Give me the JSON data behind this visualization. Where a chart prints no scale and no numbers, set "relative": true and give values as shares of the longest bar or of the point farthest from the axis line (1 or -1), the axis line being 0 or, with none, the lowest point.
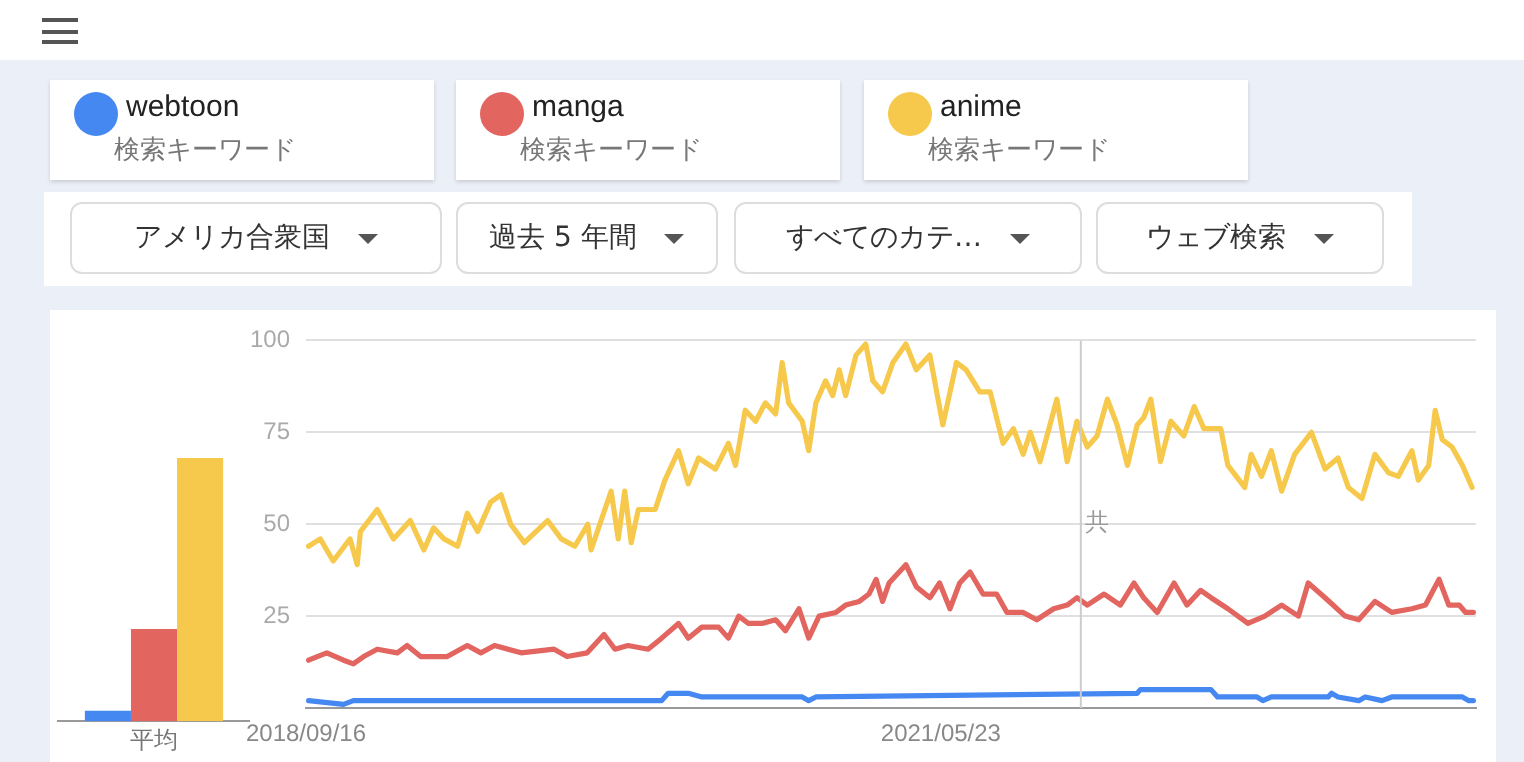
{
  "chart_data": [
    {
      "type": "bar",
      "relative": true,
      "categories": [
        "平均"
      ],
      "series": [
        {
          "color": "#4688f1",
          "values": [
            0.04
          ]
        },
        {
          "color": "#e2655f",
          "values": [
            0.35
          ]
        },
        {
          "color": "#f6c94c",
          "values": [
            1
          ]
        }
      ]
    },
    {
      "type": "line",
      "legend": "top left",
      "grid": "y",
      "line_style": "solid",
      "marker": "none",
      "xlim": [
        "2018-09-16",
        "2023-08-27"
      ],
      "xticks": [
        {
          "value": "2018-09-16",
          "label": "2018/09/16"
        },
        {
          "value": "2021-05-23",
          "label": "2021/05/23"
        }
      ],
      "ylim": [
        0,
        100
      ],
      "yticks": [
        25,
        50,
        75,
        100
      ],
      "ref_lines": [
        {
          "axis": "x",
          "value": "2021-12-25",
          "label": "共",
          "color": "#cccccc"
        }
      ],
      "annotations": [
        "検索キーワード",
        "検索キーワード",
        "検索キーワード",
        "アメリカ合衆国",
        "過去 5 年間",
        "すべてのカテ…",
        "ウェブ検索"
      ],
      "series": [
        {
          "name": "webtoon",
          "color": "#4688f1",
          "x": [
            "2018-09-20",
            "2018-11-13",
            "2018-11-28",
            "2020-03-18",
            "2020-03-28",
            "2020-04-28",
            "2020-05-19",
            "2020-10-21",
            "2020-10-31",
            "2020-11-11",
            "2022-03-22",
            "2022-03-27",
            "2022-07-14",
            "2022-07-24",
            "2022-09-23",
            "2022-10-02",
            "2022-10-15",
            "2023-01-11",
            "2023-01-16",
            "2023-01-26",
            "2023-02-27",
            "2023-03-09",
            "2023-04-04",
            "2023-04-19",
            "2023-08-06",
            "2023-08-16",
            "2023-08-23"
          ],
          "values": [
            2,
            1,
            2,
            2,
            4,
            4,
            3,
            3,
            2,
            3,
            4,
            5,
            5,
            3,
            3,
            2,
            3,
            3,
            4,
            3,
            2,
            3,
            2,
            3,
            3,
            2,
            2
          ]
        },
        {
          "name": "manga",
          "color": "#e2655f",
          "x": [
            "2018-09-20",
            "2018-10-18",
            "2018-11-13",
            "2018-11-28",
            "2018-12-14",
            "2019-01-04",
            "2019-02-04",
            "2019-02-19",
            "2019-03-12",
            "2019-04-22",
            "2019-05-23",
            "2019-06-13",
            "2019-07-04",
            "2019-08-14",
            "2019-10-04",
            "2019-10-24",
            "2019-11-24",
            "2019-12-20",
            "2020-01-06",
            "2020-01-26",
            "2020-02-26",
            "2020-03-18",
            "2020-04-13",
            "2020-04-28",
            "2020-05-19",
            "2020-06-14",
            "2020-06-29",
            "2020-07-15",
            "2020-07-30",
            "2020-08-20",
            "2020-09-10",
            "2020-09-25",
            "2020-10-16",
            "2020-10-31",
            "2020-11-16",
            "2020-12-12",
            "2020-12-27",
            "2021-01-17",
            "2021-02-01",
            "2021-02-12",
            "2021-02-22",
            "2021-03-04",
            "2021-03-30",
            "2021-04-15",
            "2021-05-06",
            "2021-05-21",
            "2021-06-06",
            "2021-06-21",
            "2021-07-07",
            "2021-07-27",
            "2021-08-17",
            "2021-09-02",
            "2021-09-27",
            "2021-10-18",
            "2021-11-13",
            "2021-12-04",
            "2021-12-19",
            "2022-01-04",
            "2022-01-30",
            "2022-02-24",
            "2022-03-17",
            "2022-04-01",
            "2022-04-22",
            "2022-05-18",
            "2022-06-07",
            "2022-06-28",
            "2022-07-14",
            "2022-08-09",
            "2022-09-09",
            "2022-10-05",
            "2022-10-31",
            "2022-11-26",
            "2022-12-11",
            "2023-01-06",
            "2023-02-06",
            "2023-02-27",
            "2023-03-24",
            "2023-04-19",
            "2023-05-20",
            "2023-06-10",
            "2023-07-01",
            "2023-07-16",
            "2023-08-01",
            "2023-08-11",
            "2023-08-23"
          ],
          "values": [
            13,
            15,
            13,
            12,
            14,
            16,
            15,
            17,
            14,
            14,
            17,
            15,
            17,
            15,
            16,
            14,
            15,
            20,
            16,
            17,
            16,
            19,
            23,
            19,
            22,
            22,
            19,
            25,
            23,
            23,
            24,
            21,
            27,
            19,
            25,
            26,
            28,
            29,
            31,
            35,
            29,
            34,
            39,
            33,
            30,
            34,
            27,
            34,
            37,
            31,
            31,
            26,
            26,
            24,
            27,
            28,
            30,
            28,
            31,
            28,
            34,
            30,
            26,
            34,
            28,
            32,
            30,
            27,
            23,
            25,
            28,
            25,
            34,
            30,
            25,
            24,
            29,
            26,
            27,
            28,
            35,
            28,
            28,
            26,
            26
          ]
        },
        {
          "name": "anime",
          "color": "#f6c94c",
          "x": [
            "2018-09-20",
            "2018-10-08",
            "2018-10-28",
            "2018-11-23",
            "2018-12-04",
            "2018-12-09",
            "2019-01-04",
            "2019-01-29",
            "2019-02-24",
            "2019-03-17",
            "2019-04-01",
            "2019-04-17",
            "2019-05-08",
            "2019-05-23",
            "2019-06-08",
            "2019-06-28",
            "2019-07-14",
            "2019-07-29",
            "2019-08-19",
            "2019-09-24",
            "2019-10-15",
            "2019-11-05",
            "2019-11-25",
            "2019-11-30",
            "2019-12-31",
            "2020-01-11",
            "2020-01-21",
            "2020-01-31",
            "2020-02-11",
            "2020-03-08",
            "2020-03-23",
            "2020-04-13",
            "2020-04-28",
            "2020-05-14",
            "2020-06-09",
            "2020-06-29",
            "2020-07-10",
            "2020-07-25",
            "2020-08-10",
            "2020-08-25",
            "2020-09-10",
            "2020-09-20",
            "2020-09-30",
            "2020-10-21",
            "2020-10-31",
            "2020-11-11",
            "2020-11-26",
            "2020-12-07",
            "2020-12-17",
            "2020-12-27",
            "2021-01-12",
            "2021-01-27",
            "2021-02-07",
            "2021-02-22",
            "2021-03-10",
            "2021-03-30",
            "2021-04-15",
            "2021-05-06",
            "2021-05-26",
            "2021-06-16",
            "2021-07-01",
            "2021-07-22",
            "2021-08-07",
            "2021-08-27",
            "2021-09-12",
            "2021-09-27",
            "2021-10-08",
            "2021-10-23",
            "2021-11-18",
            "2021-12-04",
            "2021-12-19",
            "2022-01-04",
            "2022-01-19",
            "2022-02-04",
            "2022-02-19",
            "2022-03-07",
            "2022-03-22",
            "2022-04-01",
            "2022-04-12",
            "2022-04-27",
            "2022-05-13",
            "2022-06-02",
            "2022-06-18",
            "2022-07-03",
            "2022-07-29",
            "2022-08-09",
            "2022-09-04",
            "2022-09-14",
            "2022-09-30",
            "2022-10-15",
            "2022-10-31",
            "2022-11-20",
            "2022-12-16",
            "2023-01-06",
            "2023-01-26",
            "2023-02-11",
            "2023-03-04",
            "2023-03-24",
            "2023-04-14",
            "2023-04-29",
            "2023-05-20",
            "2023-05-30",
            "2023-06-15",
            "2023-06-25",
            "2023-07-06",
            "2023-07-21",
            "2023-08-06",
            "2023-08-21"
          ],
          "values": [
            44,
            46,
            40,
            46,
            39,
            48,
            54,
            46,
            51,
            43,
            49,
            46,
            44,
            53,
            48,
            56,
            58,
            50,
            45,
            51,
            46,
            44,
            50,
            43,
            59,
            46,
            59,
            45,
            54,
            54,
            62,
            70,
            61,
            68,
            65,
            72,
            66,
            81,
            78,
            83,
            80,
            94,
            83,
            78,
            70,
            83,
            89,
            85,
            92,
            85,
            96,
            99,
            89,
            86,
            94,
            99,
            92,
            96,
            77,
            94,
            92,
            86,
            86,
            72,
            76,
            69,
            75,
            67,
            84,
            67,
            78,
            71,
            74,
            84,
            77,
            66,
            77,
            79,
            84,
            67,
            78,
            74,
            82,
            76,
            76,
            66,
            60,
            69,
            63,
            70,
            59,
            69,
            75,
            65,
            68,
            60,
            57,
            69,
            64,
            63,
            70,
            62,
            66,
            81,
            73,
            71,
            66,
            60
          ]
        }
      ]
    }
  ]
}
